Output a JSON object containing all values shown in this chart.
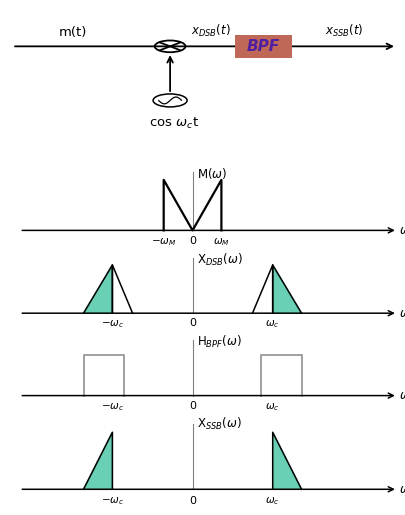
{
  "bg_color": "#ffffff",
  "teal_color": "#50C8A8",
  "bpf_bg": "#C06858",
  "bpf_text": "#5020A0",
  "wc": 2.5,
  "wM": 0.9,
  "bpf_half_bw": 0.9,
  "plot_xlim": [
    -5.5,
    6.5
  ],
  "plot_ylim": [
    -0.18,
    1.4
  ]
}
